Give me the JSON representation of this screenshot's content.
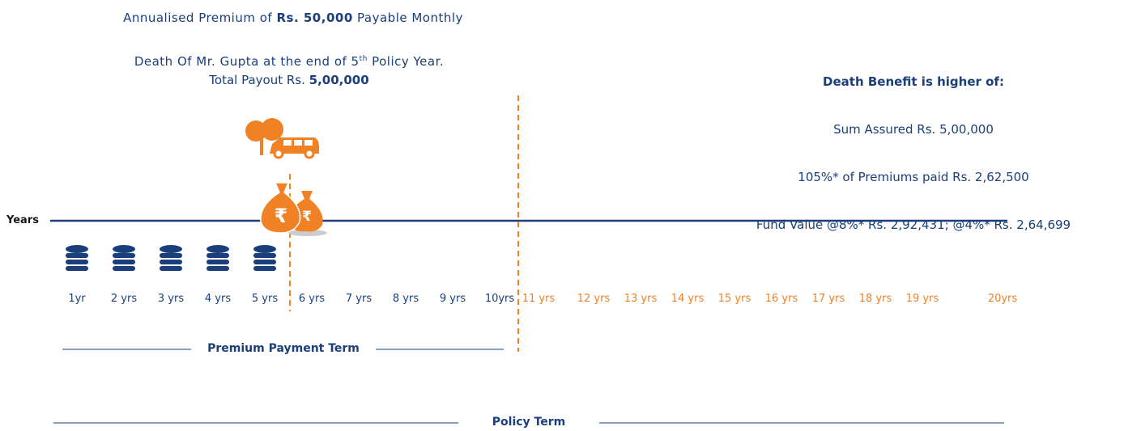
{
  "header": {
    "premium_line": [
      "Annualised Premium of ",
      "Rs. 50,000",
      " Payable Monthly"
    ],
    "death_line_1": [
      "Death Of Mr. Gupta at the end of 5",
      "th",
      " Policy Year."
    ],
    "death_line_2": [
      "Total Payout Rs. ",
      "5,00,000"
    ]
  },
  "benefit": {
    "title": "Death Benefit is higher of:",
    "lines": [
      "Sum Assured Rs. 5,00,000",
      "105%* of Premiums paid Rs. 2,62,500",
      "Fund Value @8%* Rs. 2,92,431; @4%* Rs. 2,64,699"
    ]
  },
  "timeline": {
    "axis_label": "Years",
    "years_premium": [
      "1yr",
      "2 yrs",
      "3 yrs",
      "4 yrs",
      "5 yrs",
      "6 yrs",
      "7 yrs",
      "8 yrs",
      "9 yrs",
      "10yrs"
    ],
    "years_after": [
      "11 yrs",
      "12 yrs",
      "13 yrs",
      "14 yrs",
      "15 yrs",
      "16 yrs",
      "17 yrs",
      "18 yrs",
      "19 yrs",
      "20yrs"
    ],
    "premium_term": "Premium Payment Term",
    "policy_term": "Policy Term"
  }
}
